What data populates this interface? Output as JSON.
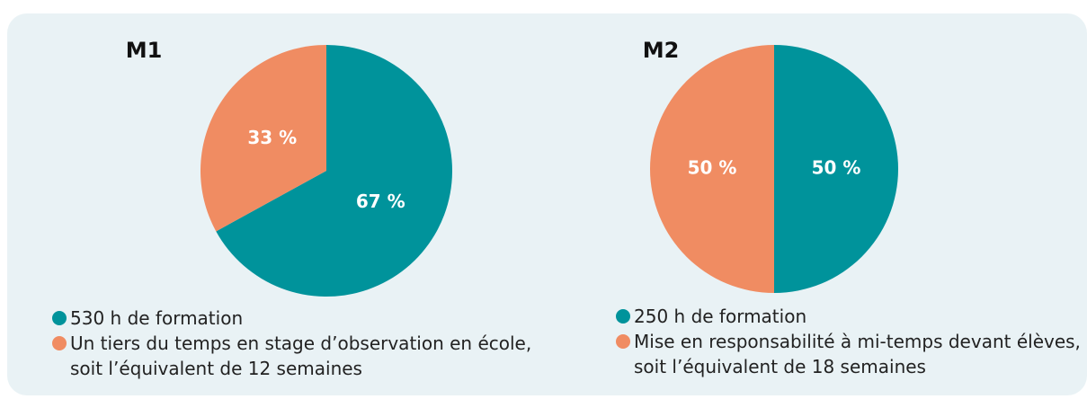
{
  "chart_data": [
    {
      "type": "pie",
      "title": "M1",
      "categories": [
        "530 h de formation",
        "Un tiers du temps en stage d’observation en école, soit l’équivalent de 12 semaines"
      ],
      "values": [
        67,
        33
      ],
      "value_labels": [
        "67 %",
        "33 %"
      ],
      "colors": [
        "#00939b",
        "#f08c62"
      ]
    },
    {
      "type": "pie",
      "title": "M2",
      "categories": [
        "250 h de formation",
        "Mise en responsabilité à mi-temps devant élèves, soit l’équivalent de 18 semaines"
      ],
      "values": [
        50,
        50
      ],
      "value_labels": [
        "50 %",
        "50 %"
      ],
      "colors": [
        "#00939b",
        "#f08c62"
      ]
    }
  ]
}
